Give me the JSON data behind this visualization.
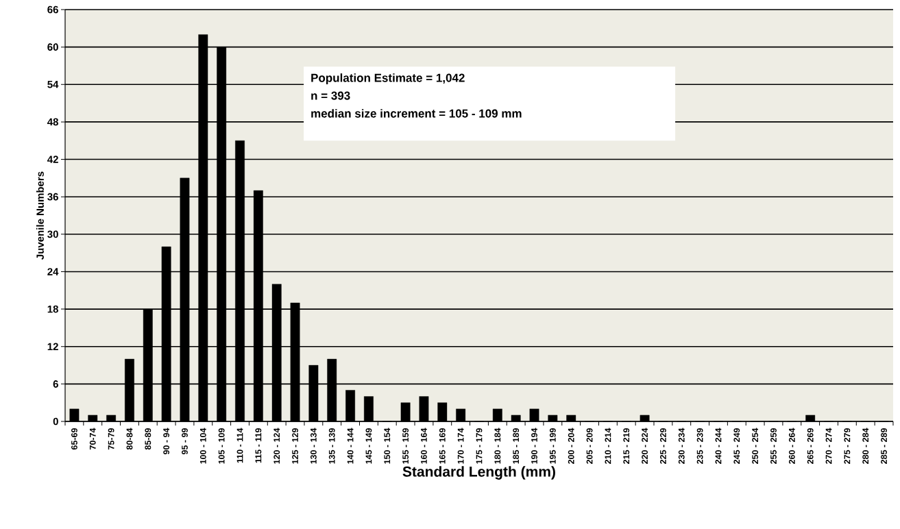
{
  "chart_data": {
    "type": "bar",
    "xlabel": "Standard Length (mm)",
    "ylabel": "Juvenile Numbers",
    "categories": [
      "65-69",
      "70-74",
      "75-79",
      "80-84",
      "85-89",
      "90 - 94",
      "95 - 99",
      "100 - 104",
      "105 - 109",
      "110 - 114",
      "115 - 119",
      "120 - 124",
      "125 - 129",
      "130 - 134",
      "135 - 139",
      "140 - 144",
      "145 - 149",
      "150 - 154",
      "155 - 159",
      "160 - 164",
      "165 - 169",
      "170 - 174",
      "175 - 179",
      "180 - 184",
      "185 - 189",
      "190 - 194",
      "195 - 199",
      "200 - 204",
      "205 - 209",
      "210 - 214",
      "215 - 219",
      "220 - 224",
      "225 - 229",
      "230 - 234",
      "235 - 239",
      "240 - 244",
      "245 - 249",
      "250 - 254",
      "255 - 259",
      "260 - 264",
      "265 - 269",
      "270 - 274",
      "275 - 279",
      "280 - 284",
      "285 - 289"
    ],
    "values": [
      2,
      1,
      1,
      10,
      18,
      28,
      39,
      62,
      60,
      45,
      37,
      22,
      19,
      9,
      10,
      5,
      4,
      0,
      3,
      4,
      3,
      2,
      0,
      2,
      1,
      2,
      1,
      1,
      0,
      0,
      0,
      1,
      0,
      0,
      0,
      0,
      0,
      0,
      0,
      0,
      1,
      0,
      0,
      0,
      0
    ],
    "color": "#000000",
    "ylim": [
      0,
      66
    ],
    "yticks": [
      0,
      6,
      12,
      18,
      24,
      30,
      36,
      42,
      48,
      54,
      60,
      66
    ],
    "grid": "y",
    "annotations": [
      "Population Estimate = 1,042",
      "n = 393",
      "median size increment = 105 - 109 mm"
    ]
  }
}
